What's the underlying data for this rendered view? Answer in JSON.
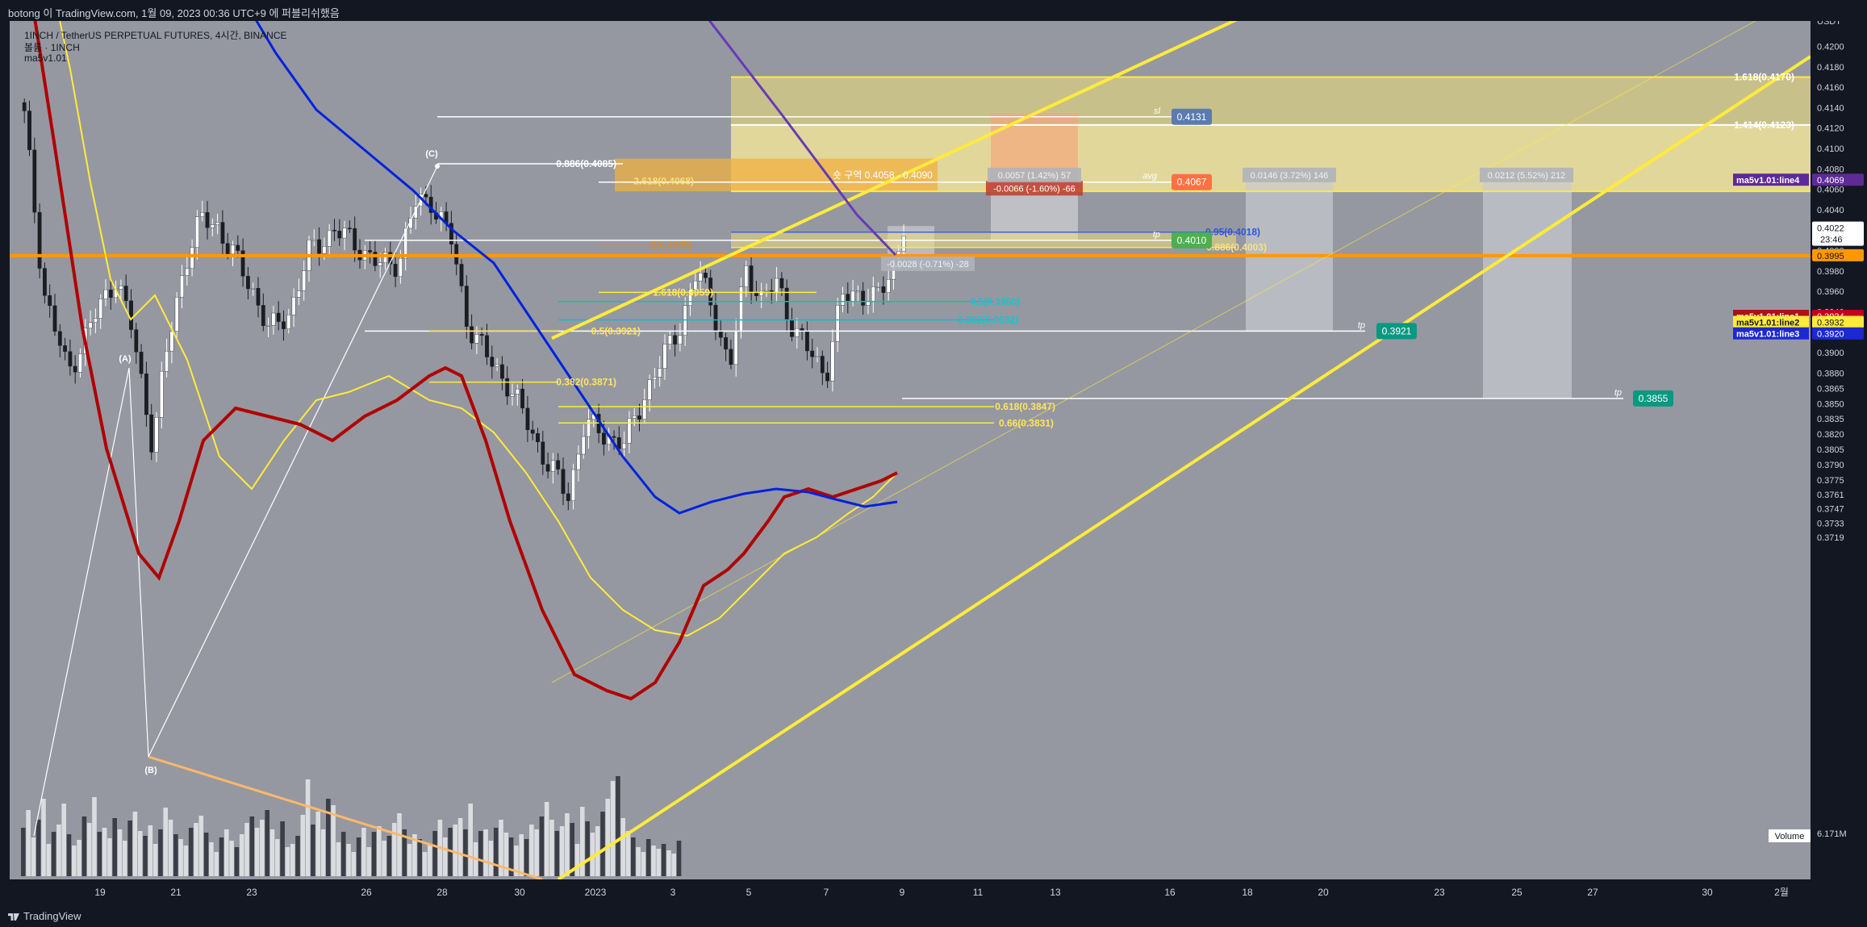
{
  "header": {
    "title": "botong 이 TradingView.com, 1월 09, 2023 00:36 UTC+9 에 퍼블리쉬했음"
  },
  "legend": {
    "symbol": "1INCH / TetherUS PERPETUAL FUTURES, 4시간, BINANCE",
    "line2": "볼륨 · 1INCH",
    "line3": "ma5v1.01"
  },
  "footer": {
    "brand": "TradingView"
  },
  "colors": {
    "background": "#9598a1",
    "ma_red": "#b00000",
    "ma_yellow": "#ffeb3b",
    "ma_blue": "#0022dd",
    "purple": "#673ab7",
    "orange_line": "#ff9800",
    "channel": "#ffeb3b",
    "teal": "#089981",
    "green": "#4caf50",
    "coral": "#ff7043",
    "steelblue": "#5b7bb0",
    "violet": "#5e2a96"
  },
  "chart_data": {
    "type": "candlestick",
    "title": "",
    "xlabel": "",
    "ylabel": "",
    "currency": "USDT",
    "ylim": [
      0.3711,
      0.423
    ],
    "x_tick_labels": [
      "19",
      "21",
      "23",
      "26",
      "28",
      "30",
      "2023",
      "3",
      "5",
      "7",
      "9",
      "11",
      "13",
      "16",
      "18",
      "20",
      "23",
      "25",
      "27",
      "30",
      "2월"
    ],
    "y_tick_labels": [
      "0.4200",
      "0.4180",
      "0.4160",
      "0.4140",
      "0.4120",
      "0.4100",
      "0.4080",
      "0.4060",
      "0.4040",
      "0.4020",
      "0.4000",
      "0.3980",
      "0.3960",
      "0.3940",
      "0.3920",
      "0.3900",
      "0.3880",
      "0.3865",
      "0.3850",
      "0.3835",
      "0.3820",
      "0.3805",
      "0.3790",
      "0.3775",
      "0.3761",
      "0.3747",
      "0.3733",
      "0.3719"
    ],
    "price_labels": [
      {
        "label": "0.4022",
        "sub": "23:46"
      },
      {
        "label": "0.3995"
      },
      {
        "label": "0.3934"
      },
      {
        "label": "0.3932"
      },
      {
        "label": "0.3920"
      },
      {
        "label": "0.4069"
      }
    ],
    "indicator_tags": [
      {
        "name": "ma5v1.01:line4",
        "value": "0.4069"
      },
      {
        "name": "ma5v1.01:line1",
        "value": "0.3934"
      },
      {
        "name": "ma5v1.01:line2",
        "value": "0.3932"
      },
      {
        "name": "ma5v1.01:line3",
        "value": "0.3920"
      }
    ],
    "volume": {
      "label": "Volume",
      "value": "6.171M"
    },
    "fib_levels": [
      {
        "label": "1.618(0.4170)"
      },
      {
        "label": "1.414(0.4123)"
      },
      {
        "label": "0.886(0.4085)"
      },
      {
        "label": "2.618(0.4068)"
      },
      {
        "label": "0.95(0.4018)"
      },
      {
        "label": "0.886(0.4003)"
      },
      {
        "label": "2(0.4005)"
      },
      {
        "label": "1.618(0.3959)"
      },
      {
        "label": "0.5(0.3950)"
      },
      {
        "label": "0.382(0.3932)"
      },
      {
        "label": "0.5(0.3921)"
      },
      {
        "label": "0.382(0.3871)"
      },
      {
        "label": "0.618(0.3847)"
      },
      {
        "label": "0.66(0.3831)"
      }
    ],
    "annotations": [
      {
        "label": "sl",
        "price": "0.4131"
      },
      {
        "label": "avg",
        "price": "0.4067"
      },
      {
        "label": "tp",
        "price": "0.4010"
      },
      {
        "label": "tp",
        "price": "0.3921"
      },
      {
        "label": "tp",
        "price": "0.3855"
      },
      {
        "label": "숏 구역 0.4058 - 0.4090"
      },
      {
        "label": "-0.0066 (-1.60%) -66"
      },
      {
        "label": "0.0057 (1.42%) 57"
      },
      {
        "label": "0.0146 (3.72%) 146"
      },
      {
        "label": "0.0212 (5.52%) 212"
      },
      {
        "label": "-0.0028 (-0.71%) -28"
      }
    ],
    "wave_labels": [
      "(A)",
      "(B)",
      "(C)"
    ]
  }
}
